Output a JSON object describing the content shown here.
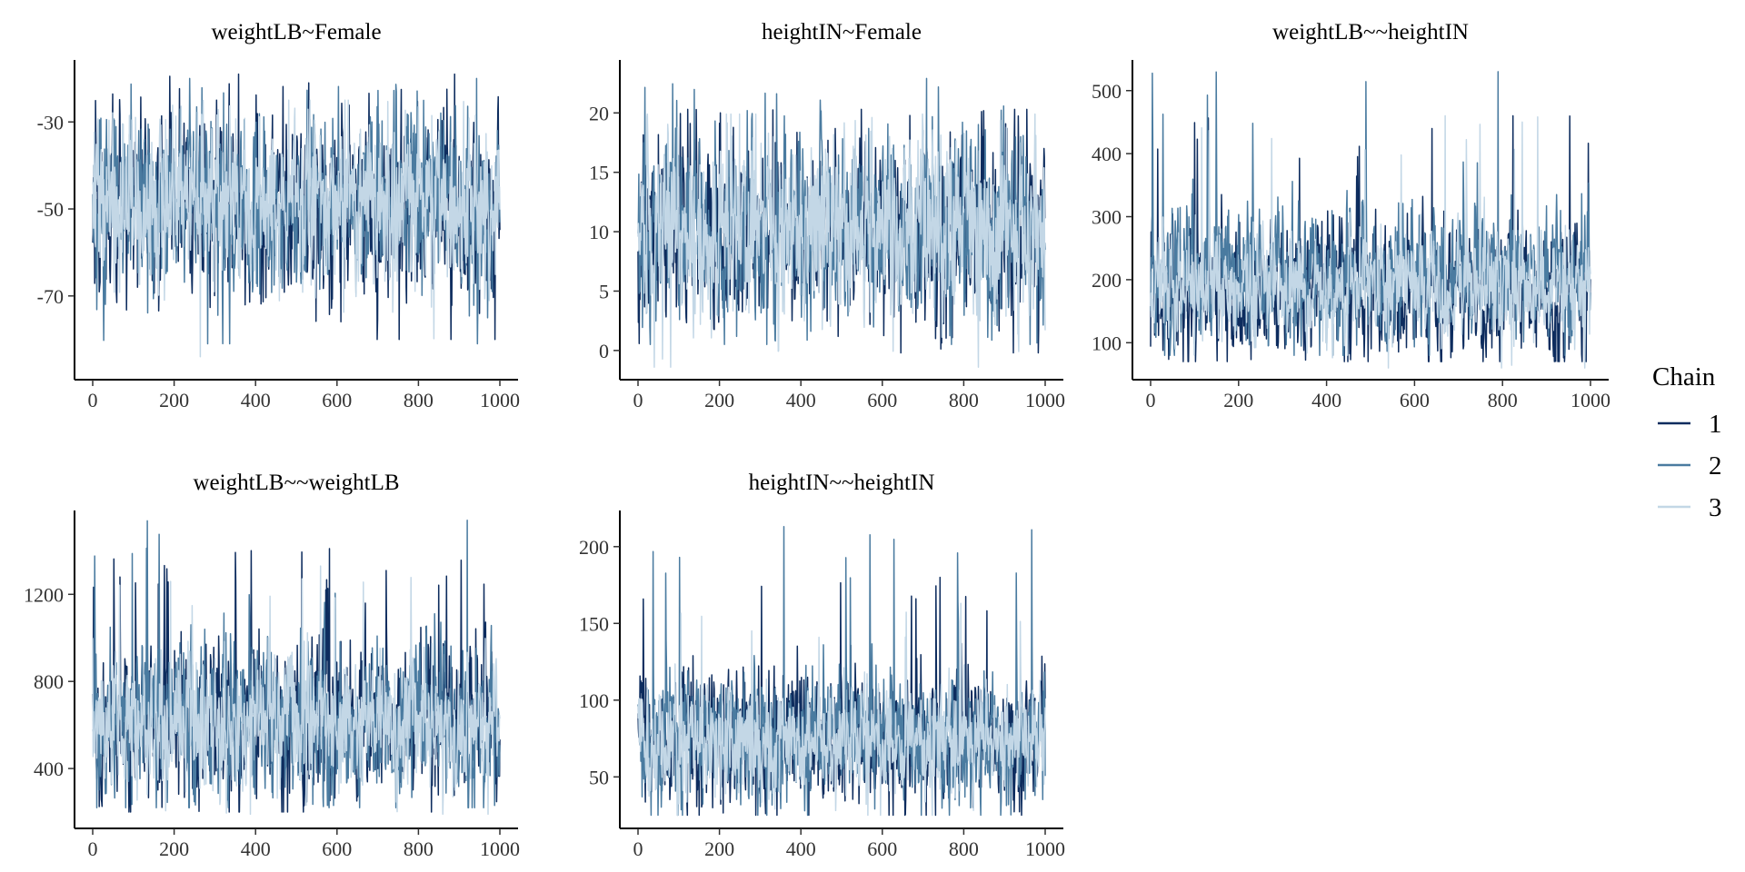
{
  "chart_data": {
    "type": "line",
    "legend": {
      "title": "Chain",
      "placement": "right",
      "entries": [
        {
          "label": "1",
          "color": "#0d2c5e"
        },
        {
          "label": "2",
          "color": "#4a7ba0"
        },
        {
          "label": "3",
          "color": "#c3d7e6"
        }
      ]
    },
    "panels": [
      {
        "title": "weightLB~Female",
        "xlim": [
          0,
          1000
        ],
        "xticks": [
          0,
          200,
          400,
          600,
          800,
          1000
        ],
        "ylim": [
          -88,
          -17
        ],
        "yticks": [
          -70,
          -50,
          -30
        ],
        "series_stats": [
          {
            "chain": "1",
            "center": -50,
            "spread": 10,
            "min": -80,
            "max": -19
          },
          {
            "chain": "2",
            "center": -49,
            "spread": 10,
            "min": -81,
            "max": -20
          },
          {
            "chain": "3",
            "center": -49,
            "spread": 9,
            "min": -84,
            "max": -25
          }
        ]
      },
      {
        "title": "heightIN~Female",
        "xlim": [
          0,
          1000
        ],
        "xticks": [
          0,
          200,
          400,
          600,
          800,
          1000
        ],
        "ylim": [
          -2,
          24
        ],
        "yticks": [
          0,
          5,
          10,
          15,
          20
        ],
        "series_stats": [
          {
            "chain": "1",
            "center": 10,
            "spread": 4,
            "min": -0.2,
            "max": 20.3
          },
          {
            "chain": "2",
            "center": 10,
            "spread": 4,
            "min": 0.5,
            "max": 22.9
          },
          {
            "chain": "3",
            "center": 10,
            "spread": 4,
            "min": -1.4,
            "max": 19.9
          }
        ]
      },
      {
        "title": "weightLB~~heightIN",
        "xlim": [
          0,
          1000
        ],
        "xticks": [
          0,
          200,
          400,
          600,
          800,
          1000
        ],
        "ylim": [
          50,
          540
        ],
        "yticks": [
          100,
          200,
          300,
          400,
          500
        ],
        "series_stats": [
          {
            "chain": "1",
            "center": 180,
            "spread": 55,
            "min": 70,
            "max": 460
          },
          {
            "chain": "2",
            "center": 200,
            "spread": 55,
            "min": 80,
            "max": 530
          },
          {
            "chain": "3",
            "center": 190,
            "spread": 45,
            "min": 60,
            "max": 460
          }
        ]
      },
      {
        "title": "weightLB~~weightLB",
        "xlim": [
          0,
          1000
        ],
        "xticks": [
          0,
          200,
          400,
          600,
          800,
          1000
        ],
        "ylim": [
          150,
          1560
        ],
        "yticks": [
          400,
          800,
          1200
        ],
        "series_stats": [
          {
            "chain": "1",
            "center": 600,
            "spread": 180,
            "min": 200,
            "max": 1410
          },
          {
            "chain": "2",
            "center": 620,
            "spread": 180,
            "min": 220,
            "max": 1540
          },
          {
            "chain": "3",
            "center": 600,
            "spread": 150,
            "min": 190,
            "max": 1330
          }
        ]
      },
      {
        "title": "heightIN~~heightIN",
        "xlim": [
          0,
          1000
        ],
        "xticks": [
          0,
          200,
          400,
          600,
          800,
          1000
        ],
        "ylim": [
          20,
          220
        ],
        "yticks": [
          50,
          100,
          150,
          200
        ],
        "series_stats": [
          {
            "chain": "1",
            "center": 75,
            "spread": 22,
            "min": 25,
            "max": 180
          },
          {
            "chain": "2",
            "center": 75,
            "spread": 22,
            "min": 25,
            "max": 213
          },
          {
            "chain": "3",
            "center": 72,
            "spread": 18,
            "min": 25,
            "max": 163
          }
        ]
      }
    ]
  }
}
